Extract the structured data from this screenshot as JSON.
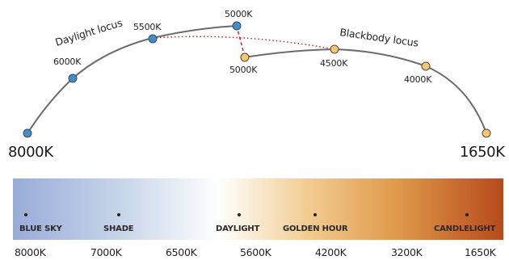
{
  "daylight_locus": {
    "title": "Daylight locus",
    "points": [
      "6000K",
      "5500K",
      "5000K"
    ],
    "start_label": "8000K",
    "point_color": "#3d8fd1"
  },
  "blackbody_locus": {
    "title": "Blackbody locus",
    "points": [
      "5000K",
      "4500K",
      "4000K"
    ],
    "end_label": "1650K",
    "point_color": "#f6c86b"
  },
  "colors": {
    "curve": "#6b6b6b",
    "connector": "#d92020",
    "gradient": [
      "#98acd8",
      "#c7d5ea",
      "#ffffff",
      "#f2cc92",
      "#e09a4c",
      "#b74a1b"
    ]
  },
  "scene_markers": [
    "BLUE SKY",
    "SHADE",
    "DAYLIGHT",
    "GOLDEN HOUR",
    "CANDLELIGHT"
  ],
  "bar_scale": [
    "8000K",
    "7000K",
    "6500K",
    "5600K",
    "4200K",
    "3200K",
    "1650K"
  ]
}
